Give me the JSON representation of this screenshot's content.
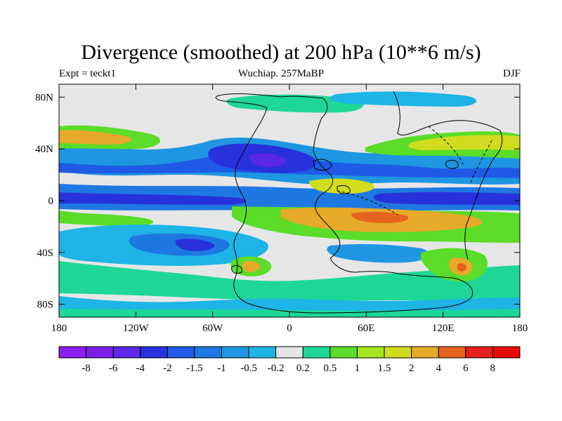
{
  "chart_data": {
    "type": "contour-map",
    "title": "Divergence (smoothed) at 200 hPa (10**6 m/s)",
    "left_string": "Expt = teckt1",
    "center_string": "Wuchiap. 257MaBP",
    "right_string": "DJF",
    "xlim": [
      -180,
      180
    ],
    "ylim": [
      -90,
      90
    ],
    "x_ticks": [
      {
        "value": -180,
        "label": "180"
      },
      {
        "value": -120,
        "label": "120W"
      },
      {
        "value": -60,
        "label": "60W"
      },
      {
        "value": 0,
        "label": "0"
      },
      {
        "value": 60,
        "label": "60E"
      },
      {
        "value": 120,
        "label": "120E"
      },
      {
        "value": 180,
        "label": "180"
      }
    ],
    "y_ticks": [
      {
        "value": 80,
        "label": "80N"
      },
      {
        "value": 40,
        "label": "40N"
      },
      {
        "value": 0,
        "label": "0"
      },
      {
        "value": -40,
        "label": "40S"
      },
      {
        "value": -80,
        "label": "80S"
      }
    ],
    "levels": [
      "-8",
      "-6",
      "-4",
      "-2",
      "-1.5",
      "-1",
      "-0.5",
      "-0.2",
      "0.2",
      "0.5",
      "1",
      "1.5",
      "2",
      "4",
      "6",
      "8"
    ],
    "colors": [
      "#8c1ef0",
      "#7d1ee8",
      "#5a28e6",
      "#2832dc",
      "#1e5ae6",
      "#1e78e1",
      "#1e96e1",
      "#1eb4e6",
      "#e6e6e6",
      "#1ed796",
      "#5adc28",
      "#a5e61e",
      "#d2dc1e",
      "#e6aa28",
      "#e6641e",
      "#e61e1e",
      "#e60a0a"
    ],
    "features": [
      {
        "name": "equatorial-convergence-band",
        "lon": [
          -180,
          180
        ],
        "lat": [
          -2,
          8
        ],
        "level": "-2"
      },
      {
        "name": "subtropical-n-convergence",
        "lon": [
          -180,
          180
        ],
        "lat": [
          18,
          32
        ],
        "level": "-1"
      },
      {
        "name": "n-atlantic-convergence-core",
        "lon": [
          -60,
          20
        ],
        "lat": [
          20,
          40
        ],
        "level": "-4"
      },
      {
        "name": "south-pacific-convergence",
        "lon": [
          -120,
          -60
        ],
        "lat": [
          -50,
          -20
        ],
        "level": "-1"
      },
      {
        "name": "tethys-divergence",
        "lon": [
          20,
          160
        ],
        "lat": [
          -20,
          0
        ],
        "level": "2"
      },
      {
        "name": "n-subtropical-divergence",
        "lon": [
          -180,
          -120
        ],
        "lat": [
          35,
          55
        ],
        "level": "1.5"
      },
      {
        "name": "asia-divergence",
        "lon": [
          70,
          180
        ],
        "lat": [
          38,
          55
        ],
        "level": "1.5"
      },
      {
        "name": "s-midlat-divergence",
        "lon": [
          -180,
          180
        ],
        "lat": [
          -70,
          -45
        ],
        "level": "0.5"
      }
    ]
  }
}
